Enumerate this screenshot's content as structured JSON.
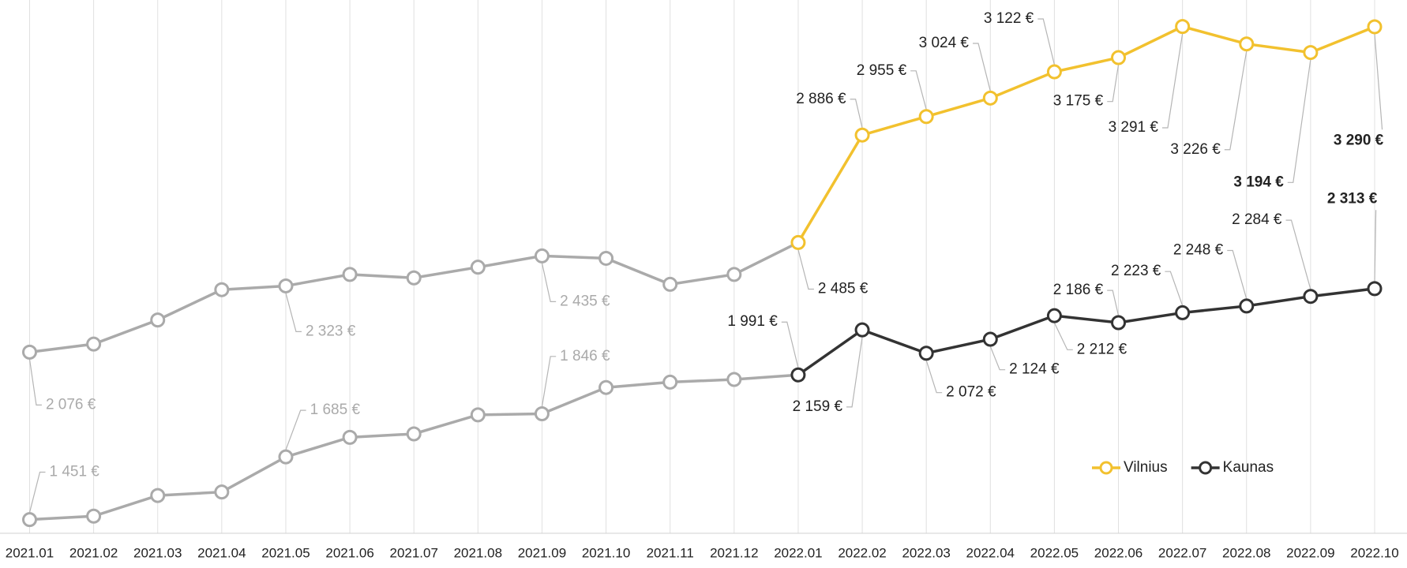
{
  "chart_data": {
    "type": "line",
    "categories": [
      "2021.01",
      "2021.02",
      "2021.03",
      "2021.04",
      "2021.05",
      "2021.06",
      "2021.07",
      "2021.08",
      "2021.09",
      "2021.10",
      "2021.11",
      "2021.12",
      "2022.01",
      "2022.02",
      "2022.03",
      "2022.04",
      "2022.05",
      "2022.06",
      "2022.07",
      "2022.08",
      "2022.09",
      "2022.10"
    ],
    "series": [
      {
        "name": "Vilnius",
        "color": "#f2c12e",
        "values": [
          2076,
          2106,
          2196,
          2309,
          2323,
          2366,
          2353,
          2393,
          2435,
          2426,
          2329,
          2366,
          2485,
          2886,
          2955,
          3024,
          3122,
          3175,
          3291,
          3226,
          3194,
          3290
        ],
        "value_labels": [
          "2 076 €",
          null,
          null,
          null,
          "2 323 €",
          null,
          null,
          null,
          "2 435 €",
          null,
          null,
          null,
          "2 485 €",
          "2 886 €",
          "2 955 €",
          "3 024 €",
          "3 122 €",
          "3 175 €",
          "3 291 €",
          "3 226 €",
          "3 194 €",
          "3 290 €"
        ]
      },
      {
        "name": "Kaunas",
        "color": "#333333",
        "values": [
          1451,
          1464,
          1541,
          1554,
          1685,
          1758,
          1771,
          1842,
          1846,
          1944,
          1964,
          1974,
          1991,
          2159,
          2072,
          2124,
          2212,
          2186,
          2223,
          2248,
          2284,
          2313
        ],
        "value_labels": [
          "1 451 €",
          null,
          null,
          null,
          "1 685 €",
          null,
          null,
          null,
          "1 846 €",
          null,
          null,
          null,
          "1 991 €",
          "2 159 €",
          "2 072 €",
          "2 124 €",
          "2 212 €",
          "2 186 €",
          "2 223 €",
          "2 248 €",
          "2 284 €",
          "2 313 €"
        ]
      }
    ],
    "past_color": "#aaaaaa",
    "highlight_from": "2022.01",
    "ylim": [
      1400,
      3390
    ],
    "grid": true,
    "legend": "lower right"
  }
}
